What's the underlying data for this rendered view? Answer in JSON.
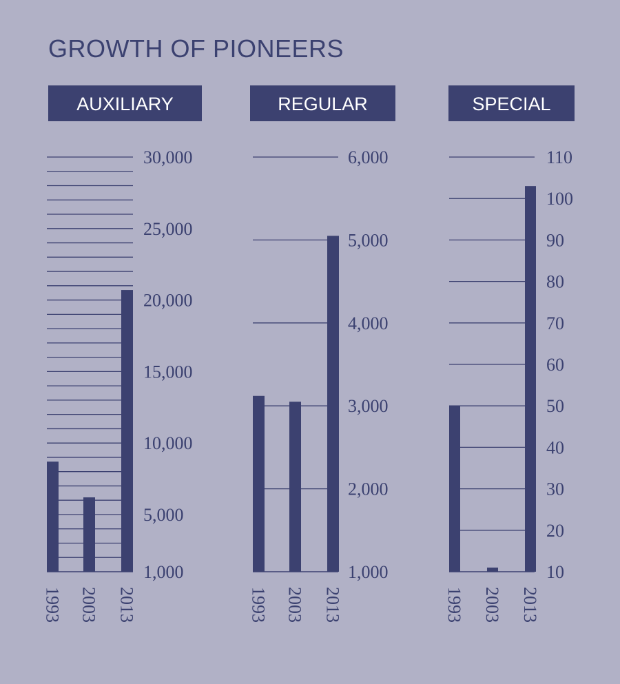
{
  "title": "GROWTH OF PIONEERS",
  "colors": {
    "background": "#b1b1c6",
    "bar": "#3c4170",
    "line": "#3c4170",
    "text": "#3b4170",
    "header_text": "#ffffff"
  },
  "chart_data": [
    {
      "type": "bar",
      "title": "AUXILIARY",
      "categories": [
        "1993",
        "2003",
        "2013"
      ],
      "values": [
        8700,
        6200,
        20700
      ],
      "ylim": [
        1000,
        30000
      ],
      "ticks": [
        1000,
        5000,
        10000,
        15000,
        20000,
        25000,
        30000
      ],
      "tick_labels": [
        "1,000",
        "5,000",
        "10,000",
        "15,000",
        "20,000",
        "25,000",
        "30,000"
      ],
      "grid": true
    },
    {
      "type": "bar",
      "title": "REGULAR",
      "categories": [
        "1993",
        "2003",
        "2013"
      ],
      "values": [
        3120,
        3050,
        5050
      ],
      "ylim": [
        1000,
        6000
      ],
      "ticks": [
        1000,
        2000,
        3000,
        4000,
        5000,
        6000
      ],
      "tick_labels": [
        "1,000",
        "2,000",
        "3,000",
        "4,000",
        "5,000",
        "6,000"
      ],
      "grid": true
    },
    {
      "type": "bar",
      "title": "SPECIAL",
      "categories": [
        "1993",
        "2003",
        "2013"
      ],
      "values": [
        50,
        11,
        103
      ],
      "ylim": [
        10,
        110
      ],
      "ticks": [
        10,
        20,
        30,
        40,
        50,
        60,
        70,
        80,
        90,
        100,
        110
      ],
      "tick_labels": [
        "10",
        "20",
        "30",
        "40",
        "50",
        "60",
        "70",
        "80",
        "90",
        "100",
        "110"
      ],
      "grid": true
    }
  ]
}
